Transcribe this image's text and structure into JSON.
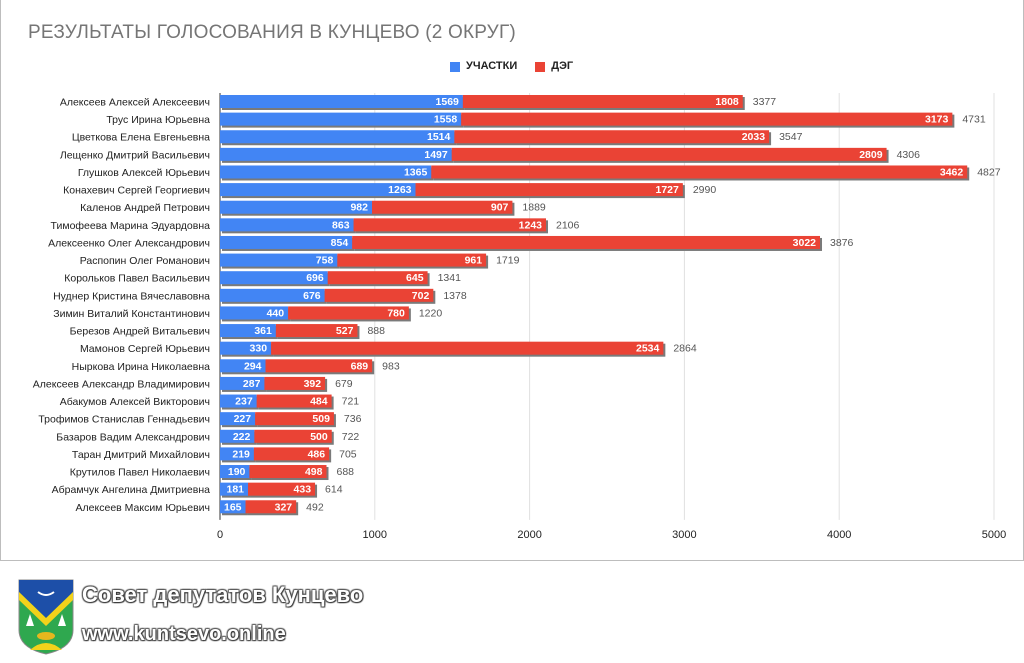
{
  "chart_data": {
    "type": "bar",
    "orientation": "horizontal",
    "stacked": true,
    "title": "РЕЗУЛЬТАТЫ ГОЛОСОВАНИЯ В КУНЦЕВО (2 ОКРУГ)",
    "legend_position": "top",
    "xlim": [
      0,
      5000
    ],
    "xticks": [
      "0",
      "1000",
      "2000",
      "3000",
      "4000",
      "5000"
    ],
    "grid": true,
    "categories": [
      "Алексеев Алексей Алексеевич",
      "Трус Ирина Юрьевна",
      "Цветкова Елена Евгеньевна",
      "Лещенко Дмитрий Васильевич",
      "Глушков Алексей Юрьевич",
      "Конахевич Сергей Георгиевич",
      "Каленов Андрей Петрович",
      "Тимофеева Марина Эдуардовна",
      "Алексеенко Олег Александрович",
      "Распопин Олег Романович",
      "Корольков Павел Васильевич",
      "Нуднер Кристина Вячеславовна",
      "Зимин Виталий Константинович",
      "Березов Андрей Витальевич",
      "Мамонов Сергей Юрьевич",
      "Ныркова Ирина Николаевна",
      "Алексеев Александр Владимирович",
      "Абакумов Алексей Викторович",
      "Трофимов Станислав Геннадьевич",
      "Базаров Вадим Александрович",
      "Таран Дмитрий Михайлович",
      "Крутилов Павел Николаевич",
      "Абрамчук Ангелина Дмитриевна",
      "Алексеев Максим Юрьевич"
    ],
    "series": [
      {
        "name": "УЧАСТКИ",
        "color": "#4285f4",
        "values": [
          1569,
          1558,
          1514,
          1497,
          1365,
          1263,
          982,
          863,
          854,
          758,
          696,
          676,
          440,
          361,
          330,
          294,
          287,
          237,
          227,
          222,
          219,
          190,
          181,
          165
        ]
      },
      {
        "name": "ДЭГ",
        "color": "#ea4335",
        "values": [
          1808,
          3173,
          2033,
          2809,
          3462,
          1727,
          907,
          1243,
          3022,
          961,
          645,
          702,
          780,
          527,
          2534,
          689,
          392,
          484,
          509,
          500,
          486,
          498,
          433,
          327
        ]
      }
    ],
    "totals": [
      3377,
      4731,
      3547,
      4306,
      4827,
      2990,
      1889,
      2106,
      3876,
      1719,
      1341,
      1378,
      1220,
      888,
      2864,
      983,
      679,
      721,
      736,
      722,
      705,
      688,
      614,
      492
    ]
  },
  "footer": {
    "org": "Совет депутатов Кунцево",
    "site": "www.kuntsevo.online"
  }
}
